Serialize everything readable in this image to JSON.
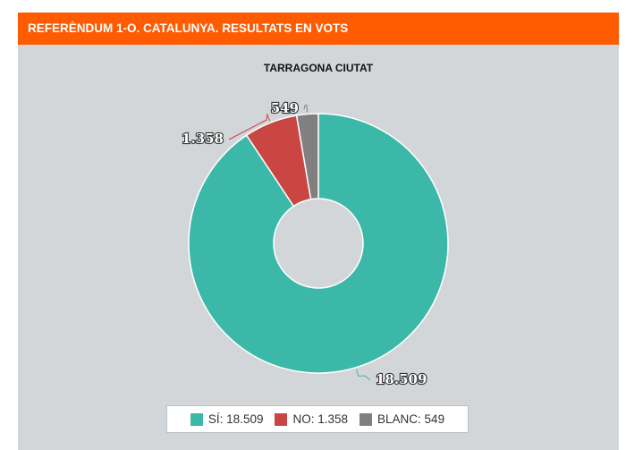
{
  "header": {
    "title": "REFERÈNDUM 1-O. CATALUNYA. RESULTATS EN VOTS"
  },
  "chart_data": {
    "type": "pie",
    "title": "TARRAGONA CIUTAT",
    "donut": true,
    "slices": [
      {
        "name": "SÍ",
        "value": 18509,
        "label": "18.509",
        "legend": "SÍ: 18.509",
        "color": "#3bb8a8"
      },
      {
        "name": "NO",
        "value": 1358,
        "label": "1.358",
        "legend": "NO: 1.358",
        "color": "#c94643"
      },
      {
        "name": "BLANC",
        "value": 549,
        "label": "549",
        "legend": "BLANC: 549",
        "color": "#808080"
      }
    ],
    "legend_position": "bottom"
  }
}
